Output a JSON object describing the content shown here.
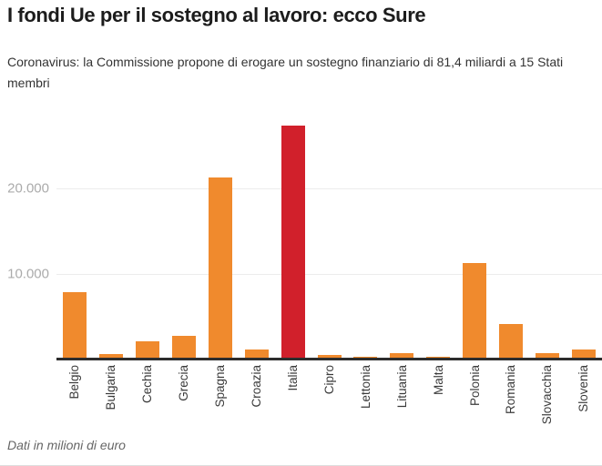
{
  "page": {
    "title": "I fondi Ue per il sostegno al lavoro: ecco Sure",
    "subtitle": "Coronavirus: la Commissione propone di erogare un sostegno finanziario di 81,4 miliardi a 15 Stati membri",
    "footnote": "Dati in milioni di euro"
  },
  "colors": {
    "bar": "#F08A2D",
    "highlight": "#D1202B",
    "gridline": "#ececec",
    "axis_line": "#2d2d2d",
    "tick_label": "#ababab",
    "category_label": "#3a3a3a"
  },
  "chart_data": {
    "type": "bar",
    "title": "I fondi Ue per il sostegno al lavoro: ecco Sure",
    "categories": [
      "Belgio",
      "Bulgaria",
      "Cechia",
      "Grecia",
      "Spagna",
      "Croazia",
      "Italia",
      "Cipro",
      "Lettonia",
      "Lituania",
      "Malta",
      "Polonia",
      "Romania",
      "Slovacchia",
      "Slovenia"
    ],
    "values": [
      7803,
      511,
      2000,
      2728,
      21324,
      1020,
      27438,
      479,
      192,
      602,
      244,
      11236,
      4099,
      631,
      1113
    ],
    "highlight_category": "Italia",
    "unit": "milioni di euro",
    "xlabel": "",
    "ylabel": "",
    "ylim": [
      0,
      28250
    ],
    "yticks": [
      {
        "value": 10000,
        "label": "10.000"
      },
      {
        "value": 20000,
        "label": "20.000"
      }
    ],
    "grid": true,
    "legend": false
  }
}
